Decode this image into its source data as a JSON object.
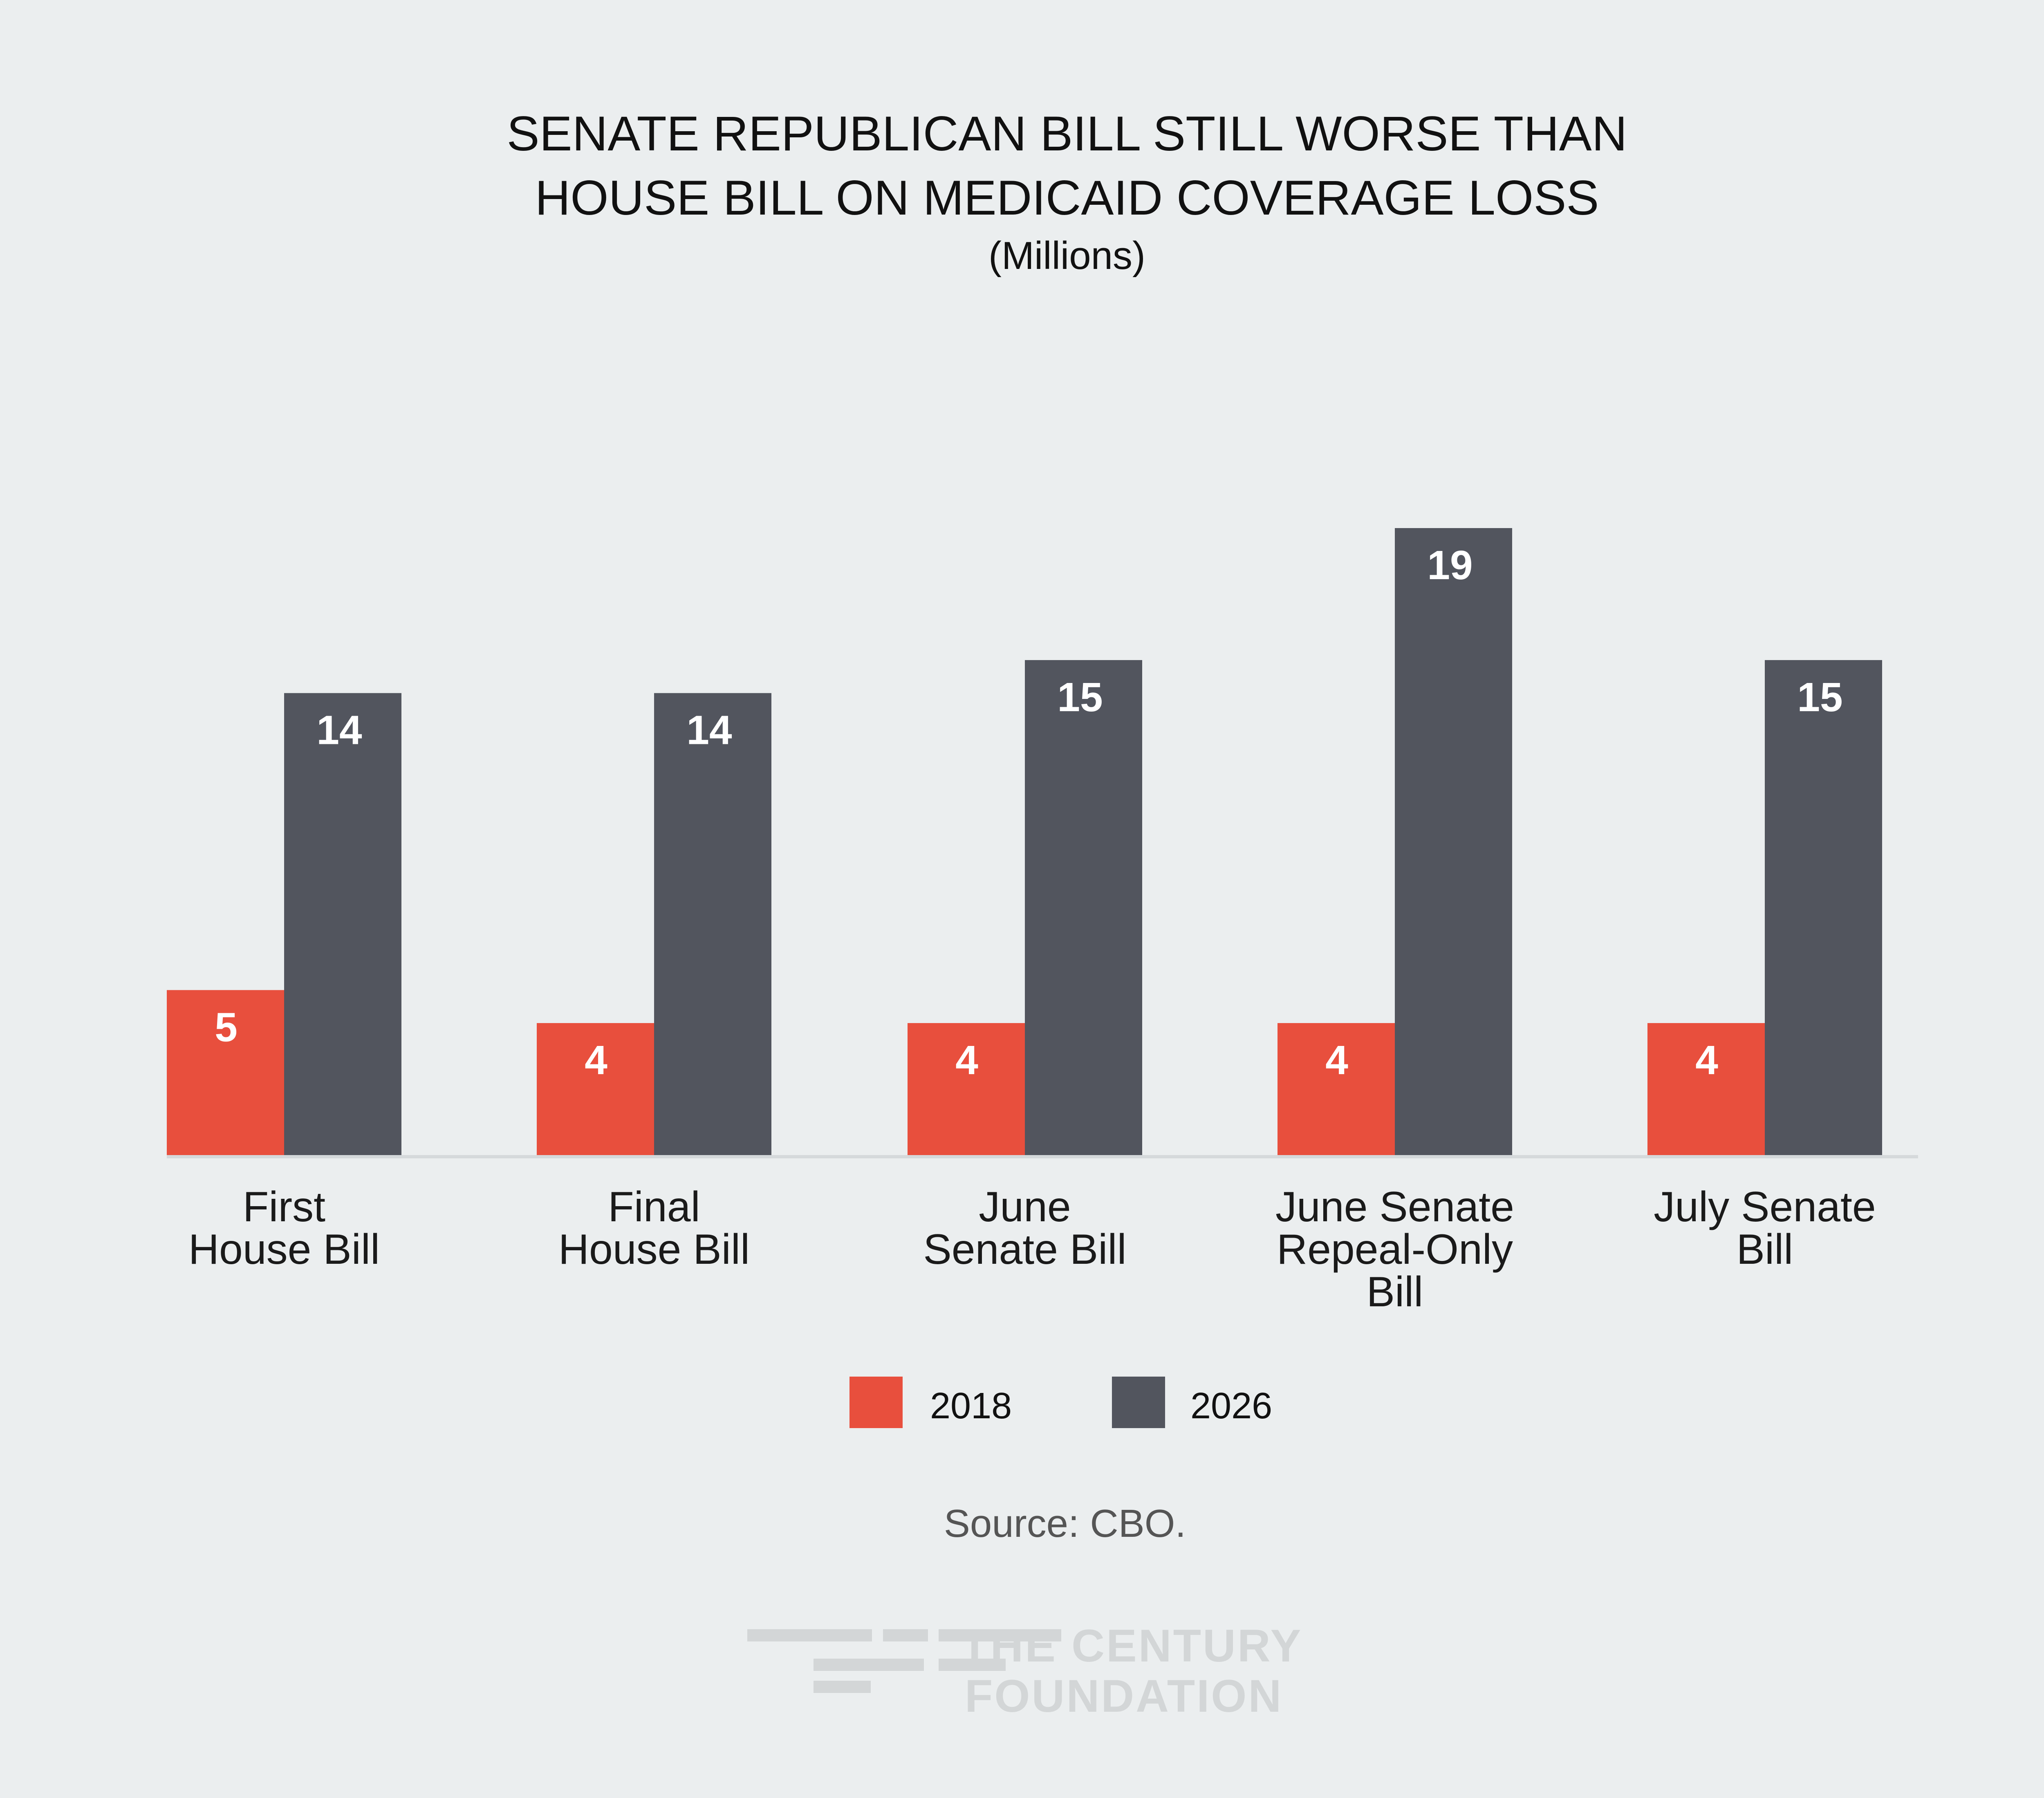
{
  "chart_data": {
    "type": "bar",
    "title": [
      "SENATE REPUBLICAN BILL STILL WORSE THAN",
      "HOUSE BILL ON MEDICAID COVERAGE LOSS"
    ],
    "subtitle": "(Millions)",
    "categories": [
      [
        "First",
        "House Bill"
      ],
      [
        "Final",
        "House Bill"
      ],
      [
        "June",
        "Senate Bill"
      ],
      [
        "June Senate",
        "Repeal-Only",
        "Bill"
      ],
      [
        "July Senate",
        "Bill"
      ]
    ],
    "series": [
      {
        "name": "2018",
        "color": "#E84F3D",
        "values": [
          5,
          4,
          4,
          4,
          4
        ]
      },
      {
        "name": "2026",
        "color": "#52555E",
        "values": [
          14,
          14,
          15,
          19,
          15
        ]
      }
    ],
    "ylim": [
      0,
      19
    ],
    "grid": false,
    "legend_position": "bottom-center",
    "source": "Source: CBO."
  },
  "branding": {
    "logo_lines": [
      "THE CENTURY",
      "FOUNDATION"
    ]
  }
}
